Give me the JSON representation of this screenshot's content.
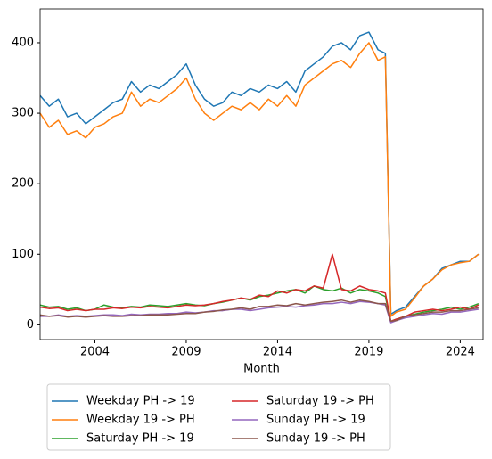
{
  "chart_data": {
    "type": "line",
    "xlabel": "Month",
    "x": [
      2001,
      2001.5,
      2002,
      2002.5,
      2003,
      2003.5,
      2004,
      2004.5,
      2005,
      2005.5,
      2006,
      2006.5,
      2007,
      2007.5,
      2008,
      2008.5,
      2009,
      2009.5,
      2010,
      2010.5,
      2011,
      2011.5,
      2012,
      2012.5,
      2013,
      2013.5,
      2014,
      2014.5,
      2015,
      2015.5,
      2016,
      2016.5,
      2017,
      2017.5,
      2018,
      2018.5,
      2019,
      2019.5,
      2019.9,
      2020.2,
      2020.5,
      2021,
      2021.5,
      2022,
      2022.5,
      2023,
      2023.5,
      2024,
      2024.5,
      2025
    ],
    "series": [
      {
        "name": "Weekday PH -> 19",
        "color": "#1f77b4",
        "values": [
          325,
          310,
          320,
          295,
          300,
          285,
          295,
          305,
          315,
          320,
          345,
          330,
          340,
          335,
          345,
          355,
          370,
          340,
          320,
          310,
          315,
          330,
          325,
          335,
          330,
          340,
          335,
          345,
          330,
          360,
          370,
          380,
          395,
          400,
          390,
          410,
          415,
          390,
          385,
          15,
          20,
          25,
          40,
          55,
          65,
          80,
          85,
          90,
          90,
          100
        ]
      },
      {
        "name": "Weekday 19 -> PH",
        "color": "#ff7f0e",
        "values": [
          300,
          280,
          290,
          270,
          275,
          265,
          280,
          285,
          295,
          300,
          330,
          310,
          320,
          315,
          325,
          335,
          350,
          320,
          300,
          290,
          300,
          310,
          305,
          315,
          305,
          320,
          310,
          325,
          310,
          340,
          350,
          360,
          370,
          375,
          365,
          385,
          400,
          375,
          380,
          12,
          18,
          22,
          38,
          55,
          65,
          78,
          85,
          88,
          90,
          100
        ]
      },
      {
        "name": "Saturday PH -> 19",
        "color": "#2ca02c",
        "values": [
          28,
          25,
          26,
          22,
          24,
          20,
          22,
          28,
          25,
          24,
          26,
          25,
          28,
          27,
          26,
          28,
          30,
          28,
          27,
          30,
          32,
          35,
          38,
          35,
          40,
          42,
          45,
          48,
          50,
          45,
          55,
          50,
          48,
          52,
          45,
          50,
          48,
          45,
          40,
          5,
          8,
          12,
          15,
          18,
          20,
          22,
          25,
          22,
          25,
          30
        ]
      },
      {
        "name": "Saturday 19 -> PH",
        "color": "#d62728",
        "values": [
          25,
          23,
          24,
          20,
          22,
          20,
          22,
          22,
          24,
          23,
          25,
          24,
          26,
          25,
          24,
          26,
          28,
          27,
          28,
          30,
          33,
          35,
          38,
          36,
          42,
          40,
          48,
          45,
          50,
          48,
          55,
          52,
          100,
          50,
          48,
          55,
          50,
          48,
          45,
          5,
          8,
          12,
          18,
          20,
          22,
          20,
          22,
          25,
          22,
          28
        ]
      },
      {
        "name": "Sunday PH -> 19",
        "color": "#9467bd",
        "values": [
          12,
          12,
          14,
          12,
          13,
          12,
          13,
          14,
          14,
          13,
          15,
          14,
          15,
          15,
          16,
          16,
          18,
          17,
          18,
          20,
          20,
          22,
          22,
          20,
          22,
          24,
          25,
          26,
          25,
          27,
          28,
          30,
          30,
          32,
          30,
          33,
          32,
          30,
          28,
          3,
          6,
          10,
          12,
          14,
          16,
          15,
          18,
          18,
          20,
          22
        ]
      },
      {
        "name": "Sunday 19 -> PH",
        "color": "#8c564b",
        "values": [
          14,
          12,
          13,
          11,
          12,
          11,
          12,
          13,
          12,
          12,
          13,
          13,
          14,
          14,
          14,
          15,
          16,
          16,
          18,
          19,
          21,
          22,
          24,
          22,
          26,
          26,
          28,
          27,
          30,
          28,
          30,
          32,
          33,
          35,
          32,
          35,
          33,
          30,
          30,
          5,
          6,
          12,
          14,
          16,
          18,
          18,
          20,
          20,
          22,
          24
        ]
      }
    ],
    "xlim": [
      2001,
      2025.25
    ],
    "xticks": [
      2004,
      2009,
      2014,
      2019,
      2024
    ],
    "ylim": [
      -21,
      448
    ],
    "yticks": [
      0,
      100,
      200,
      300,
      400
    ],
    "grid": false,
    "legend": "below"
  }
}
